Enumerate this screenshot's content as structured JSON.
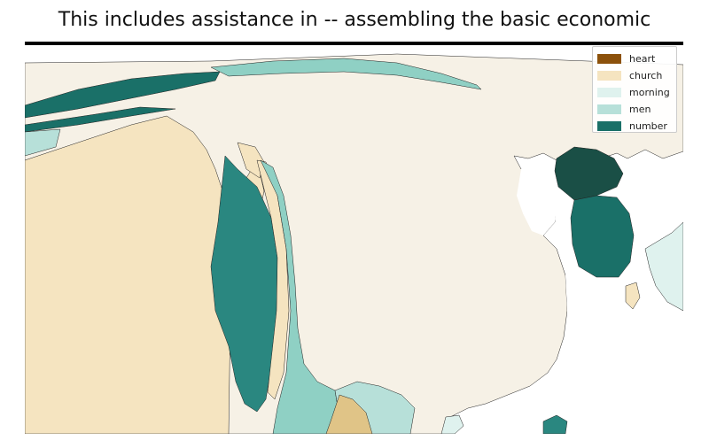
{
  "title": "This includes assistance in -- assembling the basic economic",
  "legend": {
    "items": [
      {
        "label": "heart",
        "color": "#8c510a"
      },
      {
        "label": "church",
        "color": "#f5e4c0"
      },
      {
        "label": "morning",
        "color": "#dff2ee"
      },
      {
        "label": "men",
        "color": "#b7e0d9"
      },
      {
        "label": "number",
        "color": "#1a7068"
      }
    ]
  },
  "colors": {
    "background_land": "#f6f1e6",
    "sea": "#ffffff",
    "church_land": "#f5e4c0",
    "church_dark": "#e0c487",
    "morning_land": "#dff2ee",
    "men_land": "#8fd0c4",
    "number_land": "#1a7068",
    "number_mid": "#2a8780",
    "number_darkest": "#1a4f46",
    "border": "#222222"
  }
}
